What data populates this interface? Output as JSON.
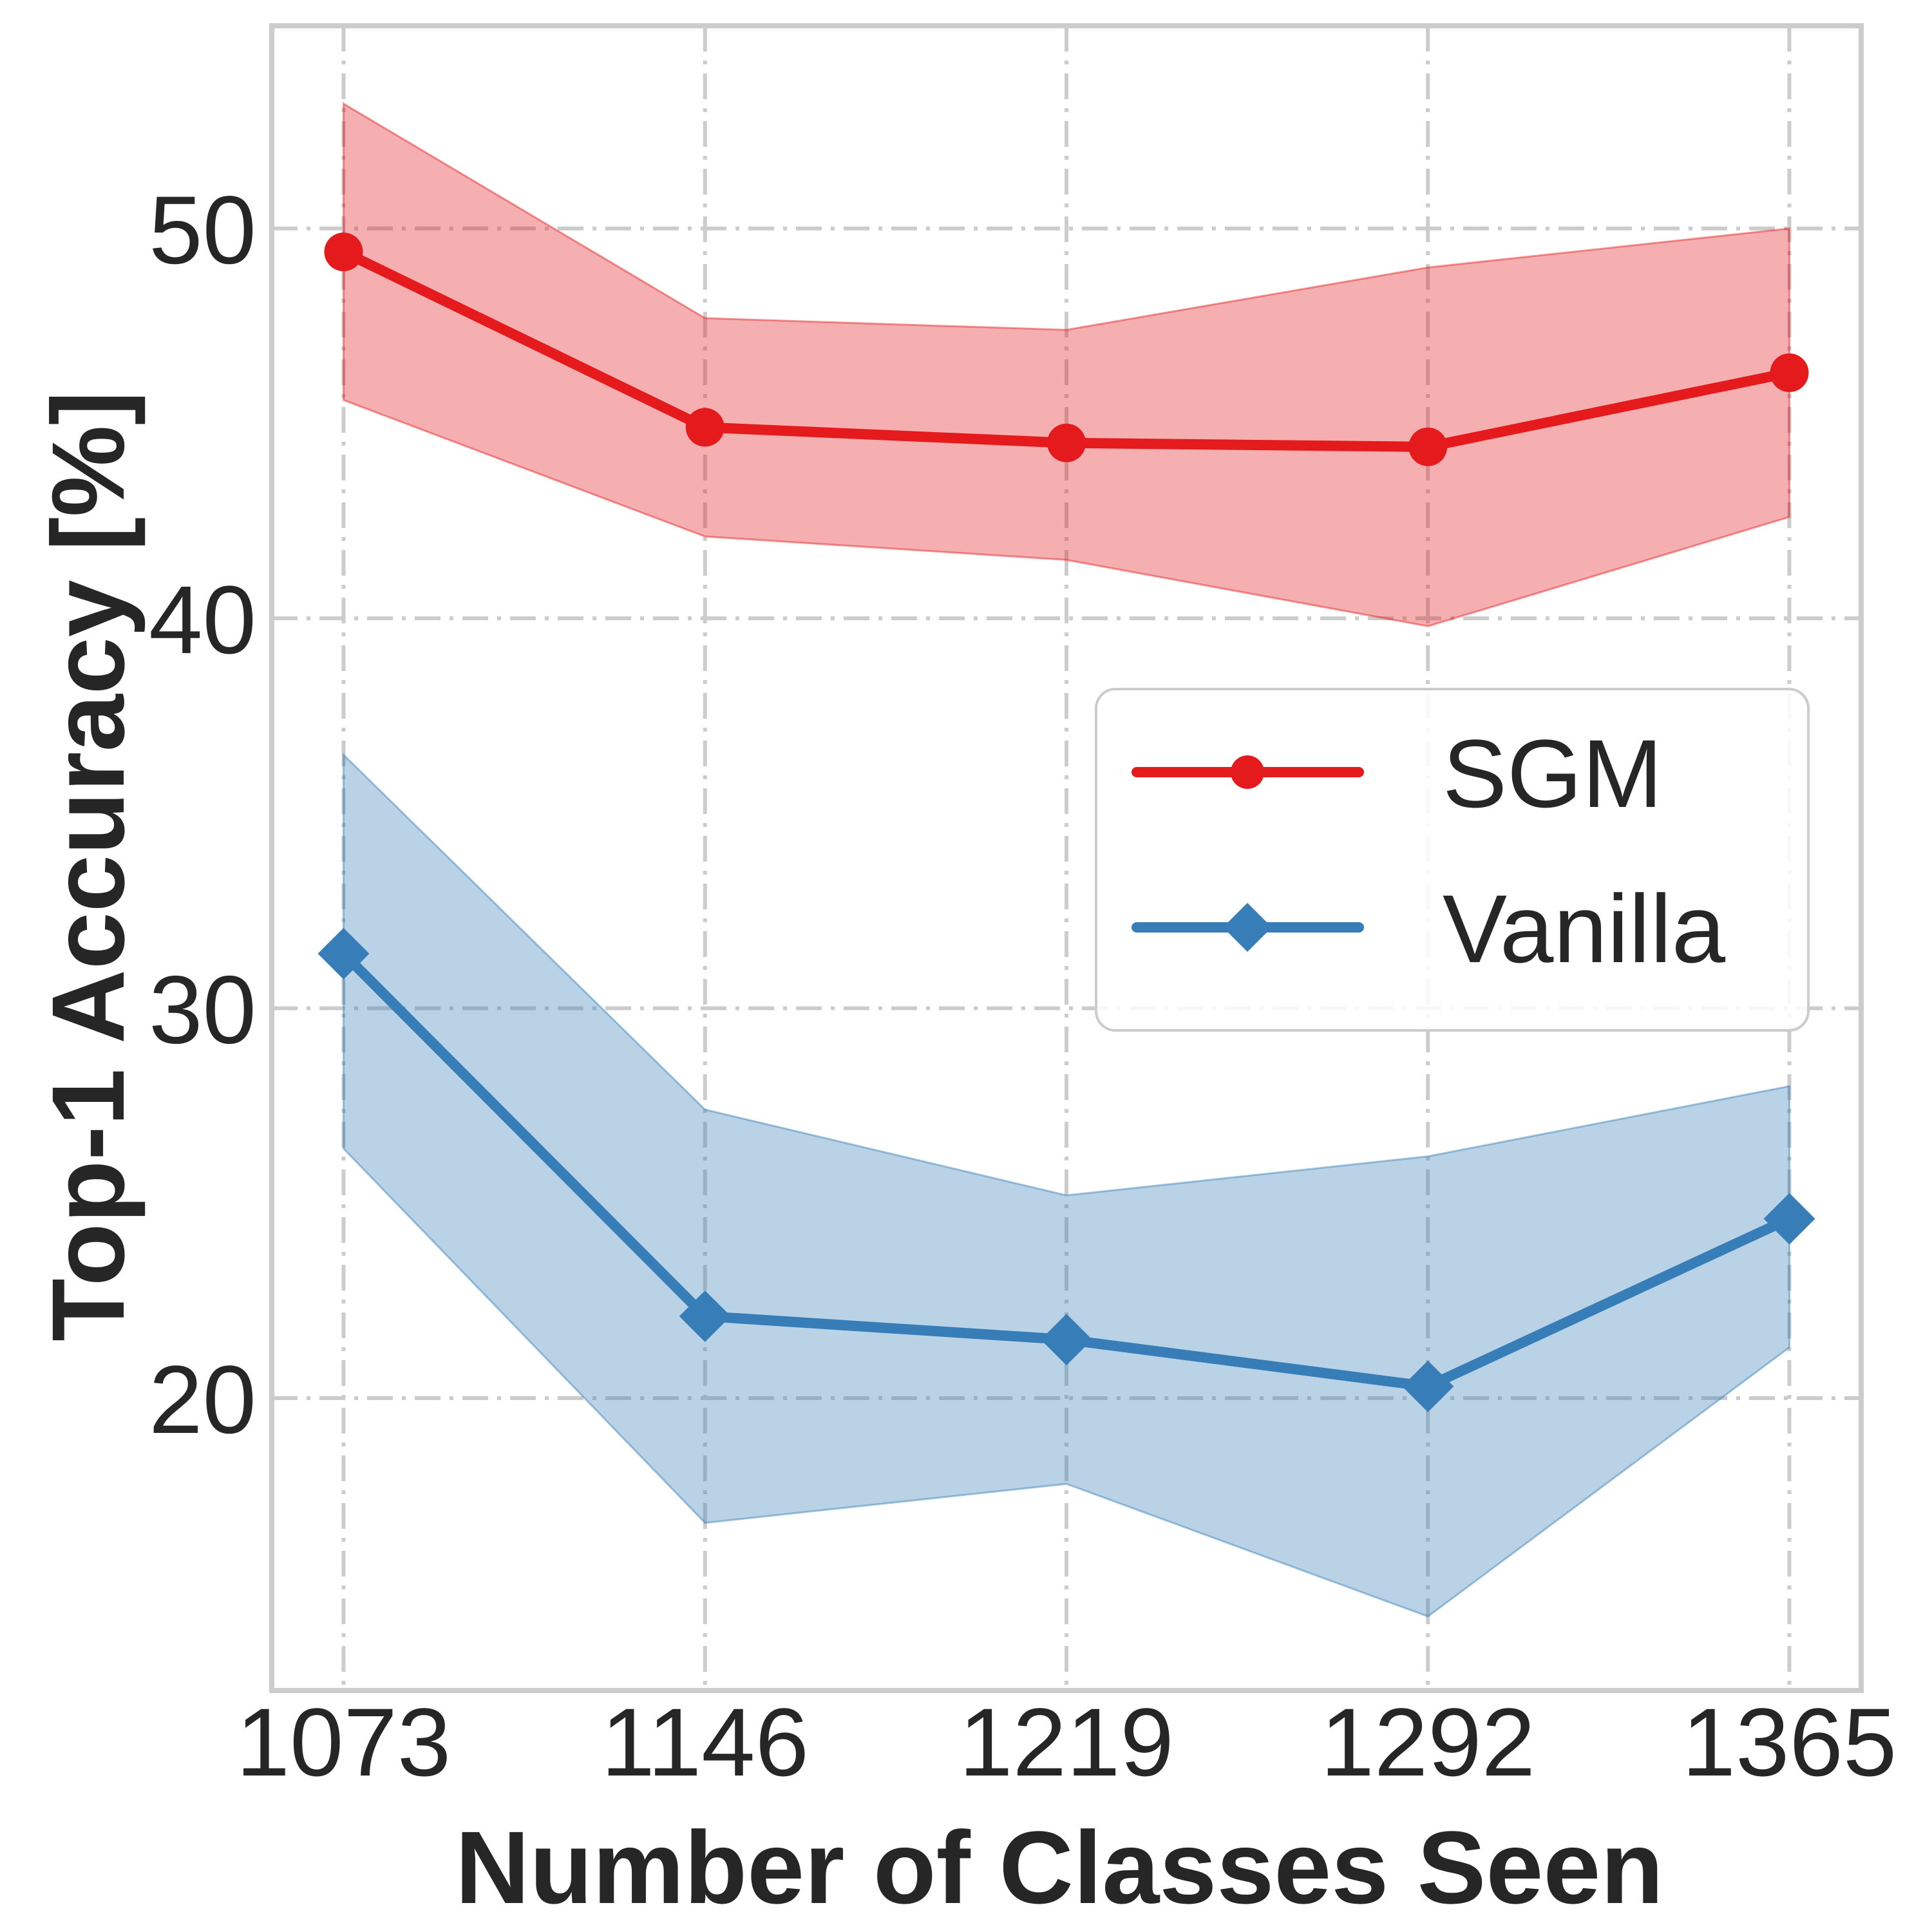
{
  "chart_data": {
    "type": "line",
    "xlabel": "Number of Classes Seen",
    "ylabel": "Top-1 Accuracy [%]",
    "x": [
      1073,
      1146,
      1219,
      1292,
      1365
    ],
    "x_tick_labels": [
      "1073",
      "1146",
      "1219",
      "1292",
      "1365"
    ],
    "y_ticks": [
      20,
      30,
      40,
      50
    ],
    "y_tick_labels": [
      "20",
      "30",
      "40",
      "50"
    ],
    "xlim": [
      1058.5,
      1379.5
    ],
    "ylim": [
      12.5,
      55.2
    ],
    "grid": true,
    "legend_position": "center-right",
    "series": [
      {
        "name": "SGM",
        "color": "#e41a1c",
        "marker": "circle",
        "values": [
          49.4,
          44.9,
          44.5,
          44.4,
          46.3
        ],
        "lower": [
          45.6,
          42.1,
          41.5,
          39.8,
          42.6
        ],
        "upper": [
          53.2,
          47.7,
          47.4,
          49.0,
          50.0
        ]
      },
      {
        "name": "Vanilla",
        "color": "#377eb8",
        "marker": "diamond",
        "values": [
          31.4,
          22.1,
          21.5,
          20.3,
          24.6
        ],
        "lower": [
          26.4,
          16.8,
          17.8,
          14.4,
          21.3
        ],
        "upper": [
          36.5,
          27.4,
          25.2,
          26.2,
          28.0
        ]
      }
    ]
  }
}
